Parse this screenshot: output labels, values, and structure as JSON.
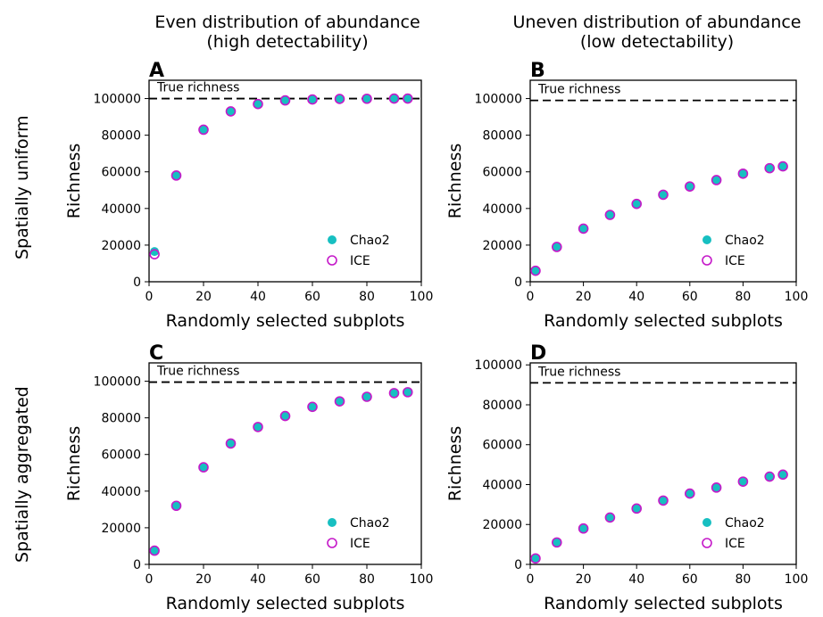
{
  "figure": {
    "column_titles": [
      {
        "line1": "Even distribution of abundance",
        "line2": "(high detectability)"
      },
      {
        "line1": "Uneven distribution of abundance",
        "line2": "(low detectability)"
      }
    ],
    "row_titles": [
      "Spatially uniform",
      "Spatially aggregated"
    ]
  },
  "colors": {
    "chao2": "#17bfc1",
    "ice": "#c519c9",
    "axis": "#000000",
    "true_line": "#000000"
  },
  "legend_labels": {
    "chao2": "Chao2",
    "ice": "ICE"
  },
  "chart_data": [
    {
      "panel": "A",
      "type": "scatter",
      "xlabel": "Randomly selected subplots",
      "ylabel": "Richness",
      "xlim": [
        0,
        100
      ],
      "ylim": [
        0,
        110000
      ],
      "xticks": [
        0,
        20,
        40,
        60,
        80,
        100
      ],
      "yticks": [
        0,
        20000,
        40000,
        60000,
        80000,
        100000
      ],
      "true_richness": 100000,
      "true_richness_label": "True richness",
      "legend_position": "lower-right",
      "x": [
        2,
        10,
        20,
        30,
        40,
        50,
        60,
        70,
        80,
        90,
        95
      ],
      "series": [
        {
          "name": "Chao2",
          "marker": "filled-circle",
          "values": [
            16500,
            58000,
            83000,
            93000,
            97000,
            99000,
            99500,
            99800,
            99900,
            100000,
            100000
          ]
        },
        {
          "name": "ICE",
          "marker": "open-circle",
          "values": [
            15000,
            58000,
            83000,
            93000,
            97000,
            99000,
            99500,
            99800,
            99900,
            100000,
            100000
          ]
        }
      ]
    },
    {
      "panel": "B",
      "type": "scatter",
      "xlabel": "Randomly selected subplots",
      "ylabel": "Richness",
      "xlim": [
        0,
        100
      ],
      "ylim": [
        0,
        110000
      ],
      "xticks": [
        0,
        20,
        40,
        60,
        80,
        100
      ],
      "yticks": [
        0,
        20000,
        40000,
        60000,
        80000,
        100000
      ],
      "true_richness": 99000,
      "true_richness_label": "True richness",
      "legend_position": "lower-right",
      "x": [
        2,
        10,
        20,
        30,
        40,
        50,
        60,
        70,
        80,
        90,
        95
      ],
      "series": [
        {
          "name": "Chao2",
          "marker": "filled-circle",
          "values": [
            6000,
            19000,
            29000,
            36500,
            42500,
            47500,
            52000,
            55500,
            59000,
            62000,
            63000
          ]
        },
        {
          "name": "ICE",
          "marker": "open-circle",
          "values": [
            6000,
            19000,
            29000,
            36500,
            42500,
            47500,
            52000,
            55500,
            59000,
            62000,
            63000
          ]
        }
      ]
    },
    {
      "panel": "C",
      "type": "scatter",
      "xlabel": "Randomly selected subplots",
      "ylabel": "Richness",
      "xlim": [
        0,
        100
      ],
      "ylim": [
        0,
        110000
      ],
      "xticks": [
        0,
        20,
        40,
        60,
        80,
        100
      ],
      "yticks": [
        0,
        20000,
        40000,
        60000,
        80000,
        100000
      ],
      "true_richness": 99500,
      "true_richness_label": "True richness",
      "legend_position": "lower-right",
      "x": [
        2,
        10,
        20,
        30,
        40,
        50,
        60,
        70,
        80,
        90,
        95
      ],
      "series": [
        {
          "name": "Chao2",
          "marker": "filled-circle",
          "values": [
            7500,
            32000,
            53000,
            66000,
            75000,
            81000,
            86000,
            89000,
            91500,
            93500,
            94000
          ]
        },
        {
          "name": "ICE",
          "marker": "open-circle",
          "values": [
            7500,
            32000,
            53000,
            66000,
            75000,
            81000,
            86000,
            89000,
            91500,
            93500,
            94000
          ]
        }
      ]
    },
    {
      "panel": "D",
      "type": "scatter",
      "xlabel": "Randomly selected subplots",
      "ylabel": "Richness",
      "xlim": [
        0,
        100
      ],
      "ylim": [
        0,
        101000
      ],
      "xticks": [
        0,
        20,
        40,
        60,
        80,
        100
      ],
      "yticks": [
        0,
        20000,
        40000,
        60000,
        80000,
        100000
      ],
      "true_richness": 91000,
      "true_richness_label": "True richness",
      "legend_position": "lower-right",
      "x": [
        2,
        10,
        20,
        30,
        40,
        50,
        60,
        70,
        80,
        90,
        95
      ],
      "series": [
        {
          "name": "Chao2",
          "marker": "filled-circle",
          "values": [
            3000,
            11000,
            18000,
            23500,
            28000,
            32000,
            35500,
            38500,
            41500,
            44000,
            45000
          ]
        },
        {
          "name": "ICE",
          "marker": "open-circle",
          "values": [
            3000,
            11000,
            18000,
            23500,
            28000,
            32000,
            35500,
            38500,
            41500,
            44000,
            45000
          ]
        }
      ]
    }
  ]
}
